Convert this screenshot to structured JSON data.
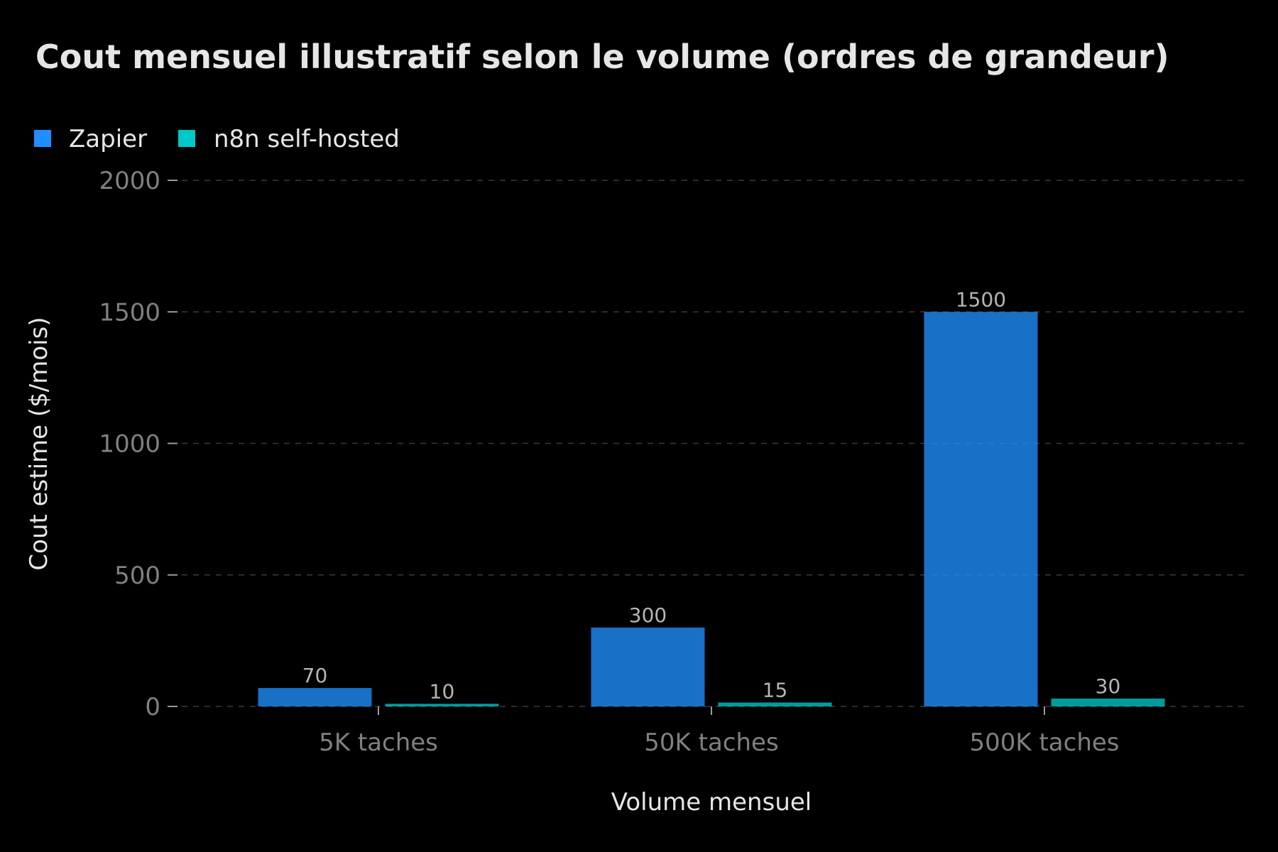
{
  "chart_data": {
    "type": "bar",
    "title": "Cout mensuel illustratif selon le volume (ordres de grandeur)",
    "xlabel": "Volume mensuel",
    "ylabel": "Cout estime ($/mois)",
    "categories": [
      "5K taches",
      "50K taches",
      "500K taches"
    ],
    "series": [
      {
        "name": "Zapier",
        "values": [
          70,
          300,
          1500
        ],
        "color": "#1f8fff"
      },
      {
        "name": "n8n self-hosted",
        "values": [
          10,
          15,
          30
        ],
        "color": "#00c8c8"
      }
    ],
    "ylim": [
      0,
      2000
    ],
    "yticks": [
      0,
      500,
      1000,
      1500,
      2000
    ],
    "grid": true,
    "legend_position": "top-left"
  }
}
